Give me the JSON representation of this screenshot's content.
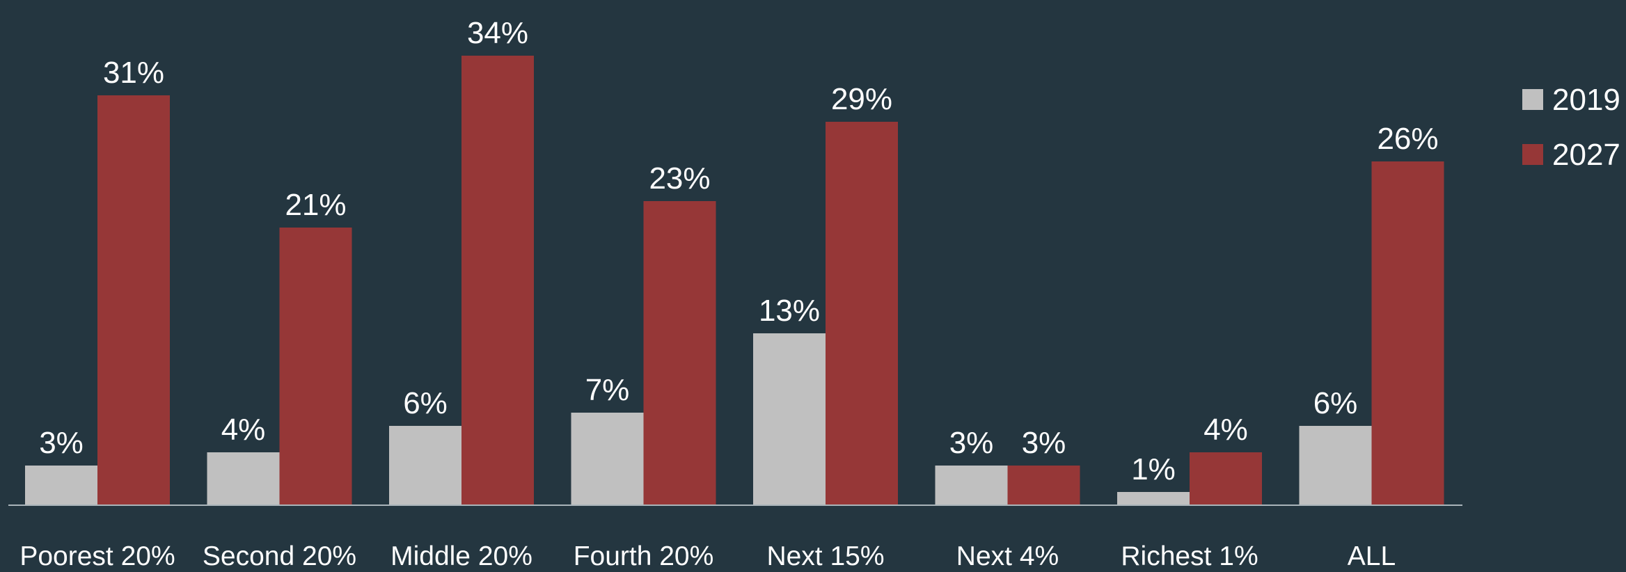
{
  "chart_data": {
    "type": "bar",
    "categories": [
      "Poorest 20%",
      "Second 20%",
      "Middle 20%",
      "Fourth 20%",
      "Next 15%",
      "Next 4%",
      "Richest 1%",
      "ALL"
    ],
    "series": [
      {
        "name": "2019",
        "color": "#c0c0c0",
        "values": [
          3,
          4,
          6,
          7,
          13,
          3,
          1,
          6
        ],
        "value_labels": [
          "3%",
          "4%",
          "6%",
          "7%",
          "13%",
          "3%",
          "1%",
          "6%"
        ]
      },
      {
        "name": "2027",
        "color": "#963737",
        "values": [
          31,
          21,
          34,
          23,
          29,
          3,
          4,
          26
        ],
        "value_labels": [
          "31%",
          "21%",
          "34%",
          "23%",
          "29%",
          "3%",
          "4%",
          "26%"
        ]
      }
    ],
    "legend": "top-right",
    "background": "#243640"
  }
}
